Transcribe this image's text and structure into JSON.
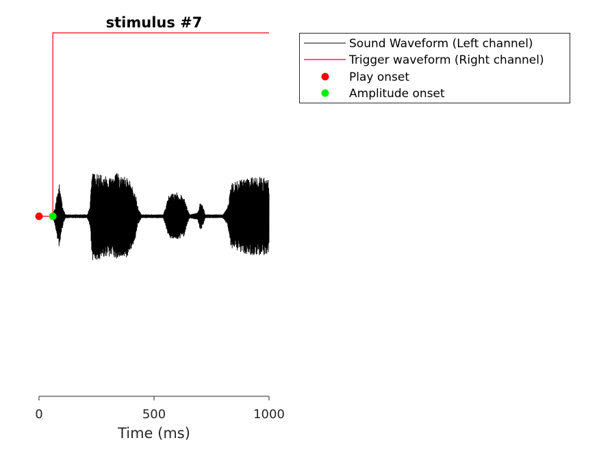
{
  "chart_data": {
    "type": "line",
    "title": "stimulus #7",
    "xlabel": "Time (ms)",
    "ylabel": "",
    "xlim": [
      0,
      1000
    ],
    "xticks": [
      0,
      500,
      1000
    ],
    "tick_labels": [
      "0",
      "500",
      "1000"
    ],
    "ylim": [
      -1,
      1
    ],
    "grid": false,
    "legend_position": "outside-top-right",
    "series": [
      {
        "name": "Sound Waveform (Left channel)",
        "style": "line",
        "color": "#000000",
        "baseline": 0,
        "envelope": [
          [
            0,
            0
          ],
          [
            60,
            0.01
          ],
          [
            70,
            0.05
          ],
          [
            78,
            0.12
          ],
          [
            88,
            0.18
          ],
          [
            95,
            0.12
          ],
          [
            105,
            0.04
          ],
          [
            115,
            0.01
          ],
          [
            210,
            0.01
          ],
          [
            220,
            0.05
          ],
          [
            232,
            0.24
          ],
          [
            250,
            0.24
          ],
          [
            300,
            0.22
          ],
          [
            340,
            0.24
          ],
          [
            360,
            0.22
          ],
          [
            380,
            0.23
          ],
          [
            400,
            0.18
          ],
          [
            420,
            0.12
          ],
          [
            432,
            0.04
          ],
          [
            445,
            0.01
          ],
          [
            540,
            0.01
          ],
          [
            550,
            0.05
          ],
          [
            565,
            0.12
          ],
          [
            600,
            0.13
          ],
          [
            630,
            0.11
          ],
          [
            645,
            0.04
          ],
          [
            655,
            0.01
          ],
          [
            690,
            0.02
          ],
          [
            700,
            0.08
          ],
          [
            712,
            0.06
          ],
          [
            722,
            0.01
          ],
          [
            800,
            0.01
          ],
          [
            820,
            0.05
          ],
          [
            835,
            0.18
          ],
          [
            880,
            0.2
          ],
          [
            920,
            0.21
          ],
          [
            960,
            0.22
          ],
          [
            1000,
            0.2
          ]
        ]
      },
      {
        "name": "Trigger waveform (Right channel)",
        "style": "line",
        "color": "#e8000b",
        "x": [
          0,
          60,
          60,
          1000
        ],
        "y": [
          0,
          0,
          1,
          1
        ]
      },
      {
        "name": "Play onset",
        "style": "marker",
        "color": "#ff0000",
        "x": [
          0
        ],
        "y": [
          0
        ]
      },
      {
        "name": "Amplitude onset",
        "style": "marker",
        "color": "#00ee00",
        "x": [
          60
        ],
        "y": [
          0
        ]
      }
    ]
  }
}
